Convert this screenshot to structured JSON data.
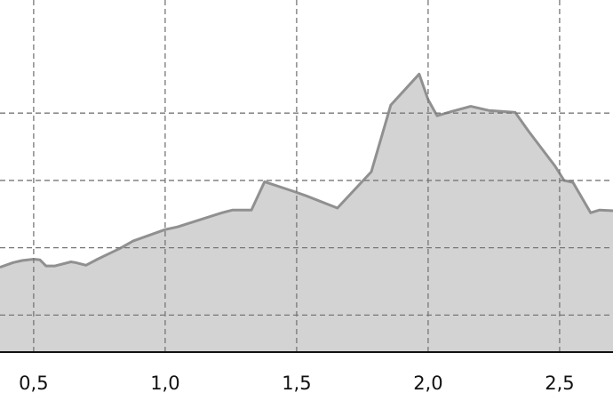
{
  "chart_data": {
    "type": "area",
    "title": "",
    "xlabel": "",
    "ylabel": "",
    "xlim": [
      0.372,
      2.703
    ],
    "ylim": [
      0.45,
      5.68
    ],
    "grid": true,
    "x_ticks": [
      0.5,
      1.0,
      1.5,
      2.0,
      2.5
    ],
    "x_tick_labels": [
      "0,5",
      "1,0",
      "1,5",
      "2,0",
      "2,5"
    ],
    "y_gridlines": [
      1,
      2,
      3,
      4
    ],
    "colors": {
      "fill": "#d3d3d3",
      "line": "#909090",
      "grid": "#777777",
      "axis": "#111111"
    },
    "x": [
      0.372,
      0.422,
      0.456,
      0.5,
      0.524,
      0.547,
      0.581,
      0.642,
      0.659,
      0.699,
      0.743,
      0.828,
      0.878,
      1.0,
      1.047,
      1.216,
      1.257,
      1.328,
      1.378,
      1.486,
      1.537,
      1.655,
      1.784,
      1.858,
      1.966,
      2.0,
      2.034,
      2.095,
      2.162,
      2.23,
      2.331,
      2.382,
      2.483,
      2.517,
      2.551,
      2.618,
      2.652,
      2.703
    ],
    "y": [
      1.71,
      1.78,
      1.81,
      1.83,
      1.82,
      1.73,
      1.73,
      1.79,
      1.78,
      1.74,
      1.83,
      1.99,
      2.1,
      2.27,
      2.31,
      2.52,
      2.56,
      2.56,
      2.98,
      2.84,
      2.77,
      2.59,
      3.13,
      4.12,
      4.58,
      4.2,
      3.96,
      4.03,
      4.1,
      4.04,
      4.01,
      3.73,
      3.21,
      3.0,
      2.97,
      2.52,
      2.56,
      2.55
    ]
  }
}
